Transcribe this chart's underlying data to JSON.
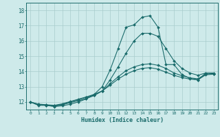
{
  "xlabel": "Humidex (Indice chaleur)",
  "ylabel": "",
  "background_color": "#ceeaea",
  "grid_color": "#a8cccc",
  "line_color": "#1a6b6b",
  "xlim": [
    -0.5,
    23.5
  ],
  "ylim": [
    11.5,
    18.5
  ],
  "xticks": [
    0,
    1,
    2,
    3,
    4,
    5,
    6,
    7,
    8,
    9,
    10,
    11,
    12,
    13,
    14,
    15,
    16,
    17,
    18,
    19,
    20,
    21,
    22,
    23
  ],
  "yticks": [
    12,
    13,
    14,
    15,
    16,
    17,
    18
  ],
  "lines": [
    {
      "x": [
        0,
        1,
        2,
        3,
        4,
        5,
        6,
        7,
        8,
        9,
        10,
        11,
        12,
        13,
        14,
        15,
        16,
        17,
        18,
        19,
        20,
        21,
        22,
        23
      ],
      "y": [
        12.0,
        11.78,
        11.78,
        11.7,
        11.75,
        11.85,
        12.0,
        12.2,
        12.5,
        13.0,
        14.1,
        15.5,
        16.9,
        17.05,
        17.55,
        17.65,
        16.9,
        14.45,
        14.45,
        13.8,
        13.55,
        13.45,
        13.9,
        13.85
      ]
    },
    {
      "x": [
        0,
        1,
        2,
        3,
        4,
        5,
        6,
        7,
        8,
        9,
        10,
        11,
        12,
        13,
        14,
        15,
        16,
        17,
        18,
        19,
        20,
        21,
        22,
        23
      ],
      "y": [
        12.0,
        11.82,
        11.78,
        11.72,
        11.82,
        11.95,
        12.08,
        12.22,
        12.42,
        12.72,
        13.45,
        14.3,
        15.2,
        16.0,
        16.5,
        16.5,
        16.3,
        15.5,
        14.7,
        14.2,
        13.9,
        13.75,
        13.9,
        13.9
      ]
    },
    {
      "x": [
        0,
        1,
        2,
        3,
        4,
        5,
        6,
        7,
        8,
        9,
        10,
        11,
        12,
        13,
        14,
        15,
        16,
        17,
        18,
        19,
        20,
        21,
        22,
        23
      ],
      "y": [
        12.0,
        11.84,
        11.8,
        11.75,
        11.85,
        12.0,
        12.15,
        12.3,
        12.45,
        12.72,
        13.2,
        13.65,
        14.05,
        14.3,
        14.45,
        14.5,
        14.4,
        14.2,
        13.9,
        13.72,
        13.58,
        13.52,
        13.82,
        13.85
      ]
    },
    {
      "x": [
        0,
        1,
        2,
        3,
        4,
        5,
        6,
        7,
        8,
        9,
        10,
        11,
        12,
        13,
        14,
        15,
        16,
        17,
        18,
        19,
        20,
        21,
        22,
        23
      ],
      "y": [
        12.0,
        11.86,
        11.82,
        11.78,
        11.88,
        12.03,
        12.18,
        12.33,
        12.5,
        12.72,
        13.1,
        13.5,
        13.82,
        14.05,
        14.2,
        14.25,
        14.15,
        13.95,
        13.75,
        13.6,
        13.5,
        13.45,
        13.78,
        13.82
      ]
    }
  ]
}
